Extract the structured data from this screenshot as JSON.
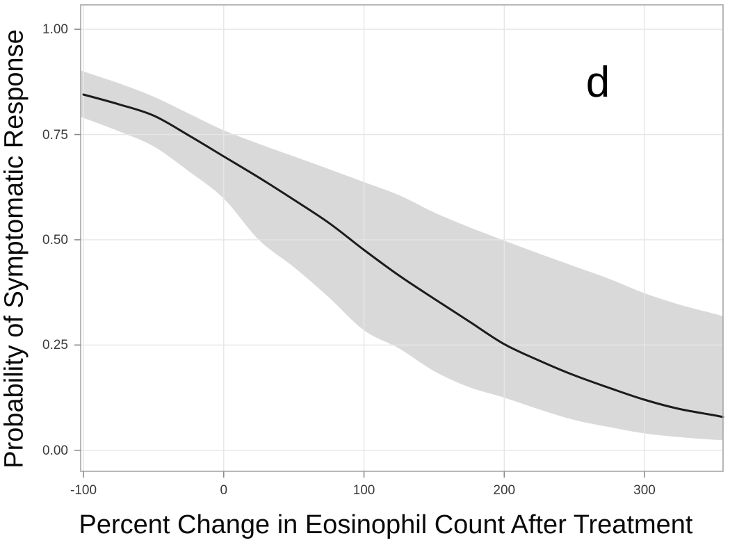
{
  "figure": {
    "panel_label": "d",
    "colors": {
      "background": "#ffffff",
      "band": "#d9d9d9",
      "curve": "#1c1c1c",
      "grid": "#e6e6e6",
      "panel_border": "#a6a6a6",
      "tick_mark": "#8c8c8c",
      "tick_text": "#3a3a3a",
      "title_text": "#0a0a0a"
    }
  },
  "chart_data": {
    "type": "line",
    "title": "",
    "xlabel": "Percent Change in Eosinophil Count After Treatment",
    "ylabel": "Probability of Symptomatic Response",
    "panel_label": "d",
    "xlim": [
      -102,
      356
    ],
    "ylim": [
      -0.05,
      1.058
    ],
    "grid": true,
    "legend": false,
    "x_ticks": {
      "values": [
        -100,
        0,
        100,
        200,
        300
      ],
      "labels": [
        "-100",
        "0",
        "100",
        "200",
        "300"
      ]
    },
    "y_ticks": {
      "values": [
        0,
        0.25,
        0.5,
        0.75,
        1.0
      ],
      "labels": [
        "0.00",
        "0.25",
        "0.50",
        "0.75",
        "1.00"
      ]
    },
    "series": [
      {
        "name": "predicted-probability-curve",
        "x": [
          -100,
          -75,
          -50,
          -25,
          0,
          25,
          50,
          75,
          100,
          125,
          150,
          175,
          200,
          225,
          250,
          275,
          300,
          325,
          350,
          356
        ],
        "y": [
          0.845,
          0.822,
          0.795,
          0.748,
          0.698,
          0.648,
          0.595,
          0.54,
          0.476,
          0.415,
          0.36,
          0.306,
          0.252,
          0.213,
          0.178,
          0.148,
          0.12,
          0.098,
          0.083,
          0.079
        ]
      }
    ],
    "confidence_band": {
      "name": "confidence-band",
      "x": [
        -102,
        -75,
        -50,
        -25,
        0,
        25,
        50,
        75,
        100,
        125,
        150,
        175,
        200,
        225,
        250,
        275,
        300,
        325,
        350,
        356
      ],
      "upper": [
        0.902,
        0.872,
        0.84,
        0.8,
        0.76,
        0.728,
        0.698,
        0.668,
        0.637,
        0.606,
        0.565,
        0.53,
        0.498,
        0.467,
        0.437,
        0.407,
        0.373,
        0.346,
        0.324,
        0.318
      ],
      "lower": [
        0.792,
        0.758,
        0.722,
        0.663,
        0.598,
        0.5,
        0.435,
        0.363,
        0.285,
        0.242,
        0.188,
        0.15,
        0.125,
        0.097,
        0.072,
        0.055,
        0.04,
        0.031,
        0.025,
        0.024
      ]
    }
  }
}
